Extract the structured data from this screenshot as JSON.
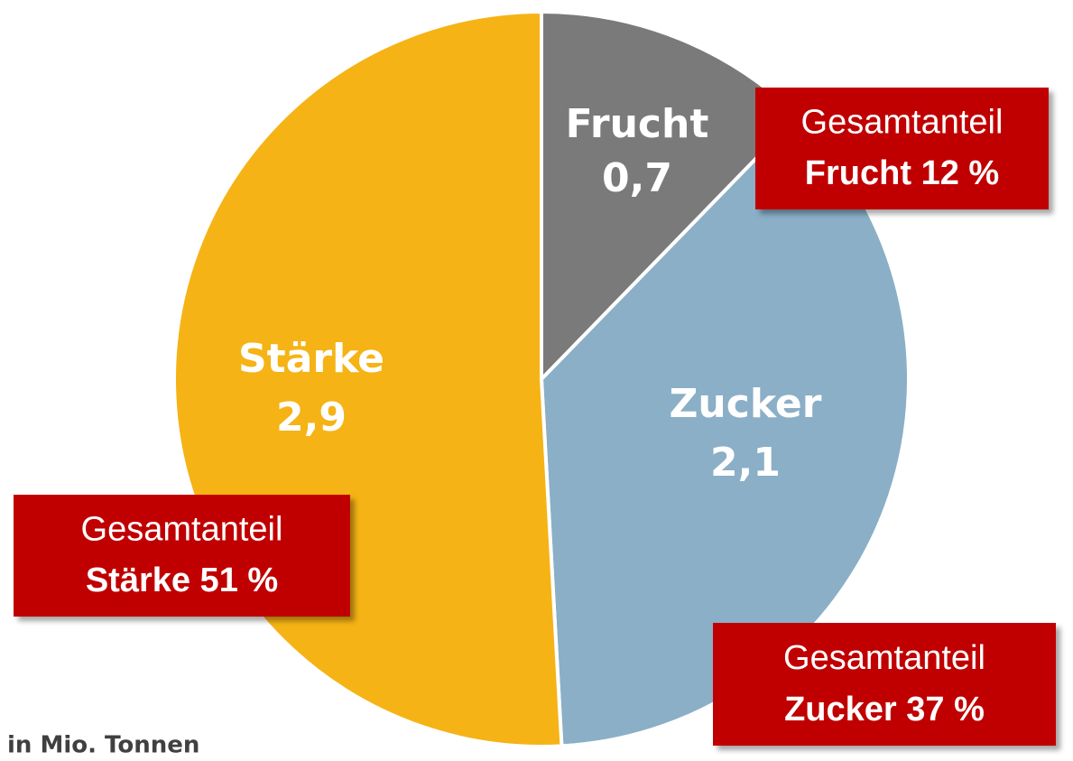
{
  "chart_data": {
    "type": "pie",
    "categories": [
      "Frucht",
      "Zucker",
      "Stärke"
    ],
    "values": [
      0.7,
      2.1,
      2.9
    ],
    "value_labels": [
      "0,7",
      "2,1",
      "2,9"
    ],
    "colors": [
      "#7a7a7a",
      "#8aafc7",
      "#f5b315"
    ],
    "callouts": [
      {
        "title": "Gesamtanteil",
        "label": "Frucht 12 %"
      },
      {
        "title": "Gesamtanteil",
        "label": "Zucker 37 %"
      },
      {
        "title": "Gesamtanteil",
        "label": "Stärke 51 %"
      }
    ],
    "note": "in Mio. Tonnen"
  }
}
